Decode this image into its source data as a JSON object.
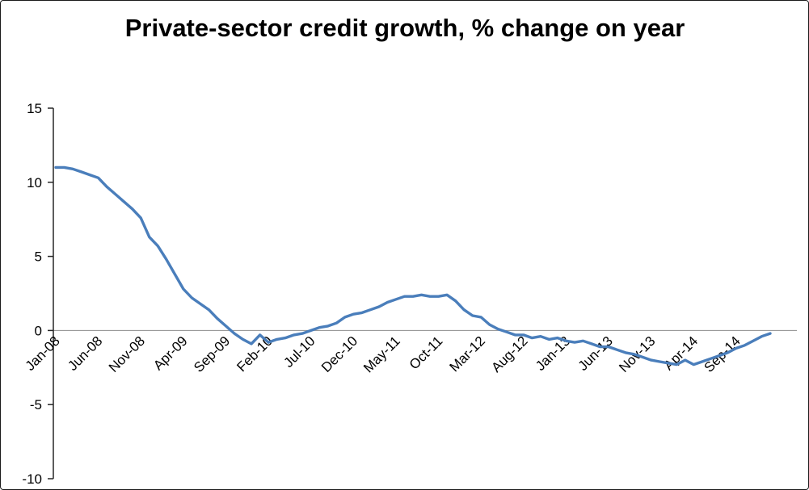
{
  "chart_data": {
    "type": "line",
    "title": "Private-sector credit growth, % change on year",
    "series_name": "Private-sector credit growth (% change on year)",
    "legend": "none",
    "grid": "zero-line-only",
    "ylim": [
      -10,
      15
    ],
    "y_ticks": [
      15,
      10,
      5,
      0,
      -5,
      -10
    ],
    "x_tick_interval": 5,
    "x_tick_labels": [
      "Jan-08",
      "Jun-08",
      "Nov-08",
      "Apr-09",
      "Sep-09",
      "Feb-10",
      "Jul-10",
      "Dec-10",
      "May-11",
      "Oct-11",
      "Mar-12",
      "Aug-12",
      "Jan-13",
      "Jun-13",
      "Nov-13",
      "Apr-14",
      "Sep-14"
    ],
    "x": [
      "Jan-08",
      "Feb-08",
      "Mar-08",
      "Apr-08",
      "May-08",
      "Jun-08",
      "Jul-08",
      "Aug-08",
      "Sep-08",
      "Oct-08",
      "Nov-08",
      "Dec-08",
      "Jan-09",
      "Feb-09",
      "Mar-09",
      "Apr-09",
      "May-09",
      "Jun-09",
      "Jul-09",
      "Aug-09",
      "Sep-09",
      "Oct-09",
      "Nov-09",
      "Dec-09",
      "Jan-10",
      "Feb-10",
      "Mar-10",
      "Apr-10",
      "May-10",
      "Jun-10",
      "Jul-10",
      "Aug-10",
      "Sep-10",
      "Oct-10",
      "Nov-10",
      "Dec-10",
      "Jan-11",
      "Feb-11",
      "Mar-11",
      "Apr-11",
      "May-11",
      "Jun-11",
      "Jul-11",
      "Aug-11",
      "Sep-11",
      "Oct-11",
      "Nov-11",
      "Dec-11",
      "Jan-12",
      "Feb-12",
      "Mar-12",
      "Apr-12",
      "May-12",
      "Jun-12",
      "Jul-12",
      "Aug-12",
      "Sep-12",
      "Oct-12",
      "Nov-12",
      "Dec-12",
      "Jan-13",
      "Feb-13",
      "Mar-13",
      "Apr-13",
      "May-13",
      "Jun-13",
      "Jul-13",
      "Aug-13",
      "Sep-13",
      "Oct-13",
      "Nov-13",
      "Dec-13",
      "Jan-14",
      "Feb-14",
      "Mar-14",
      "Apr-14",
      "May-14",
      "Jun-14",
      "Jul-14",
      "Aug-14",
      "Sep-14",
      "Oct-14",
      "Nov-14",
      "Dec-14",
      "Jan-15"
    ],
    "values": [
      11.0,
      11.0,
      10.9,
      10.7,
      10.5,
      10.3,
      9.7,
      9.2,
      8.7,
      8.2,
      7.6,
      6.3,
      5.7,
      4.8,
      3.8,
      2.8,
      2.2,
      1.8,
      1.4,
      0.8,
      0.3,
      -0.2,
      -0.6,
      -0.9,
      -0.3,
      -0.8,
      -0.6,
      -0.5,
      -0.3,
      -0.2,
      0.0,
      0.2,
      0.3,
      0.5,
      0.9,
      1.1,
      1.2,
      1.4,
      1.6,
      1.9,
      2.1,
      2.3,
      2.3,
      2.4,
      2.3,
      2.3,
      2.4,
      2.0,
      1.4,
      1.0,
      0.9,
      0.4,
      0.1,
      -0.1,
      -0.3,
      -0.3,
      -0.5,
      -0.4,
      -0.6,
      -0.5,
      -0.7,
      -0.8,
      -0.7,
      -0.9,
      -1.1,
      -1.1,
      -1.3,
      -1.5,
      -1.6,
      -1.8,
      -2.0,
      -2.1,
      -2.2,
      -2.3,
      -2.0,
      -2.3,
      -2.1,
      -1.9,
      -1.7,
      -1.5,
      -1.2,
      -1.0,
      -0.7,
      -0.4,
      -0.2
    ],
    "line_color": "#4A7EBB",
    "axis_color": "#262626",
    "zero_line_color": "#8c8c8c",
    "label_color": "#000000"
  }
}
